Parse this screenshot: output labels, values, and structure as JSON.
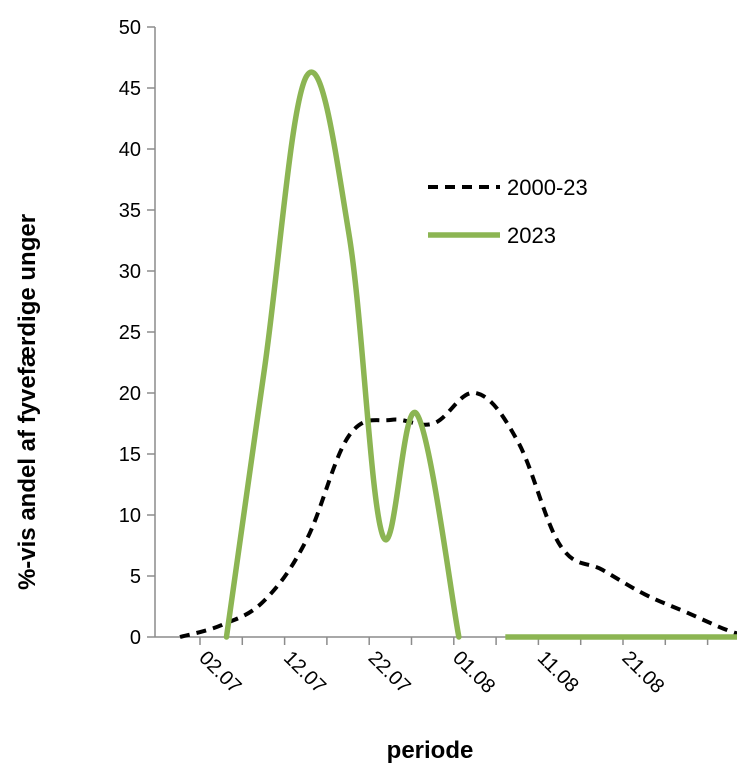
{
  "chart_data": {
    "type": "line",
    "xlabel": "periode",
    "ylabel": "%-vis andel af fyvefærdige unger",
    "ylim": [
      0,
      50
    ],
    "yticks": [
      "0",
      "5",
      "10",
      "15",
      "20",
      "25",
      "30",
      "35",
      "40",
      "45",
      "50"
    ],
    "xticks": [
      "02.07",
      "12.07",
      "22.07",
      "01.08",
      "11.08",
      "21.08"
    ],
    "grid": false,
    "legend_position": "right-center",
    "x_unit": "index",
    "series": [
      {
        "name": "2000-23",
        "style": "dashed",
        "color": "#000000",
        "points": [
          [
            0.0,
            0.0
          ],
          [
            0.5,
            1.0
          ],
          [
            1.0,
            3.0
          ],
          [
            1.5,
            8.0
          ],
          [
            2.0,
            16.5
          ],
          [
            2.5,
            17.8
          ],
          [
            3.0,
            17.5
          ],
          [
            3.5,
            20.0
          ],
          [
            4.0,
            16.0
          ],
          [
            4.5,
            7.5
          ],
          [
            5.0,
            5.5
          ],
          [
            5.5,
            3.5
          ],
          [
            6.0,
            2.0
          ],
          [
            6.5,
            0.5
          ],
          [
            6.8,
            0.0
          ]
        ]
      },
      {
        "name": "2023",
        "style": "solid",
        "color": "#8cb553",
        "points": [
          [
            0.55,
            0.0
          ],
          [
            1.0,
            22.0
          ],
          [
            1.5,
            46.0
          ],
          [
            2.0,
            33.0
          ],
          [
            2.4,
            8.3
          ],
          [
            2.8,
            18.3
          ],
          [
            3.3,
            0.0
          ]
        ],
        "points_tail": [
          [
            3.85,
            0.0
          ],
          [
            6.8,
            0.0
          ]
        ]
      }
    ]
  }
}
